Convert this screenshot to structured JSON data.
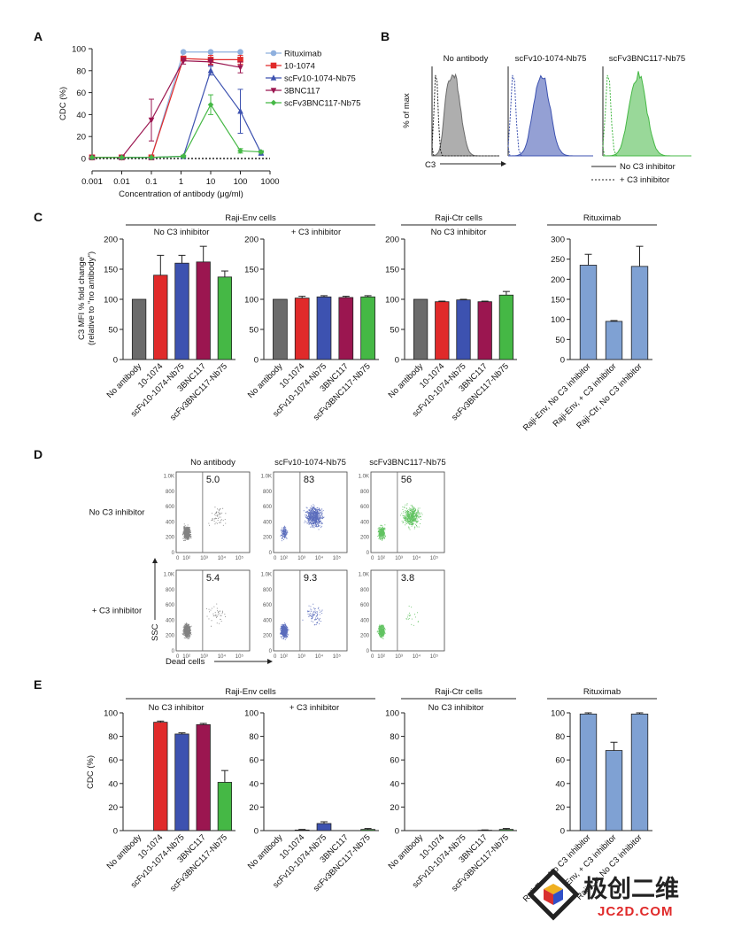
{
  "panels": {
    "A": "A",
    "B": "B",
    "C": "C",
    "D": "D",
    "E": "E"
  },
  "colors": {
    "rituximab": "#8fb0de",
    "ab1074": "#e02a2a",
    "scfv1074": "#3d52b0",
    "bnc117": "#9b1650",
    "scfv3bnc": "#45b845",
    "grey": "#6b6b6b",
    "green": "#45b845",
    "blue": "#3d52b0",
    "red": "#e02a2a",
    "magenta": "#9b1650",
    "lightblue": "#7fa1d3"
  },
  "chart_data": [
    {
      "id": "A",
      "type": "line",
      "xlabel": "Concentration of antibody (μg/ml)",
      "ylabel": "CDC (%)",
      "x": [
        0.001,
        0.01,
        0.1,
        1.2,
        10,
        100,
        500
      ],
      "xscale": "log",
      "xlim": [
        0.001,
        1000
      ],
      "ylim": [
        0,
        100
      ],
      "xticks": [
        "0.001",
        "0.01",
        "0.1",
        "1",
        "10",
        "100",
        "1000"
      ],
      "yticks": [
        "0",
        "20",
        "40",
        "60",
        "80",
        "100"
      ],
      "series": [
        {
          "name": "Rituximab",
          "marker": "circle",
          "values": [
            1,
            1,
            1,
            97,
            97,
            97,
            null
          ],
          "err": [
            0,
            0,
            0,
            1,
            1,
            1,
            0
          ]
        },
        {
          "name": "10-1074",
          "marker": "square",
          "values": [
            1,
            1,
            1,
            91,
            90,
            90,
            null
          ],
          "err": [
            0,
            0,
            0,
            2,
            4,
            4,
            0
          ]
        },
        {
          "name": "scFv10-1074-Nb75",
          "marker": "triangle-up",
          "values": [
            1,
            1,
            1,
            2,
            80,
            43,
            5
          ],
          "err": [
            0,
            0,
            0,
            1,
            4,
            20,
            2
          ]
        },
        {
          "name": "3BNC117",
          "marker": "triangle-down",
          "values": [
            1,
            1,
            35,
            89,
            88,
            83,
            null
          ],
          "err": [
            0,
            0,
            19,
            3,
            3,
            5,
            0
          ]
        },
        {
          "name": "scFv3BNC117-Nb75",
          "marker": "diamond",
          "values": [
            1,
            1,
            1,
            2,
            49,
            7,
            6
          ],
          "err": [
            0,
            0,
            0,
            1,
            9,
            2,
            1
          ]
        }
      ]
    },
    {
      "id": "B",
      "type": "area",
      "ylabel": "% of max",
      "xlabel": "C3",
      "subplots": [
        "No antibody",
        "scFv10-1074-Nb75",
        "scFv3BNC117-Nb75"
      ],
      "legend": [
        "No C3 inhibitor",
        "+ C3 inhibitor"
      ]
    },
    {
      "id": "C",
      "type": "bar",
      "ylabel": "C3 MFI % fold change (relative to \"no antibody\")",
      "groups": [
        {
          "header": "Raji-Env cells",
          "subtitle": "No C3 inhibitor",
          "ylim": [
            0,
            200
          ],
          "yticks": [
            "0",
            "50",
            "100",
            "150",
            "200"
          ],
          "categories": [
            "No antibody",
            "10-1074",
            "scFv10-1074-Nb75",
            "3BNC117",
            "scFv3BNC117-Nb75"
          ],
          "values": [
            100,
            140,
            160,
            162,
            137
          ],
          "err": [
            0,
            33,
            13,
            26,
            10
          ]
        },
        {
          "header": "",
          "subtitle": "+ C3 inhibitor",
          "ylim": [
            0,
            200
          ],
          "yticks": [
            "0",
            "50",
            "100",
            "150",
            "200"
          ],
          "categories": [
            "No antibody",
            "10-1074",
            "scFv10-1074-Nb75",
            "3BNC117",
            "scFv3BNC117-Nb75"
          ],
          "values": [
            100,
            102,
            104,
            103,
            104
          ],
          "err": [
            0,
            3,
            2,
            2,
            2
          ]
        },
        {
          "header": "Raji-Ctr cells",
          "subtitle": "No C3 inhibitor",
          "ylim": [
            0,
            200
          ],
          "yticks": [
            "0",
            "50",
            "100",
            "150",
            "200"
          ],
          "categories": [
            "No antibody",
            "10-1074",
            "scFv10-1074-Nb75",
            "3BNC117",
            "scFv3BNC117-Nb75"
          ],
          "values": [
            100,
            96,
            99,
            96,
            107
          ],
          "err": [
            0,
            1,
            1,
            1,
            6
          ]
        },
        {
          "header": "Rituximab",
          "subtitle": "",
          "ylim": [
            0,
            300
          ],
          "yticks": [
            "0",
            "50",
            "100",
            "150",
            "200",
            "250",
            "300"
          ],
          "categories": [
            "Raji-Env, No C3 inhibitor",
            "Raji-Env, + C3 inhibitor",
            "Raji-Ctr, No C3 inhibitor"
          ],
          "values": [
            235,
            95,
            232
          ],
          "err": [
            27,
            2,
            50
          ]
        }
      ]
    },
    {
      "id": "D",
      "type": "scatter",
      "xlabel": "Dead cells",
      "ylabel": "SSC",
      "columns": [
        "No antibody",
        "scFv10-1074-Nb75",
        "scFv3BNC117-Nb75"
      ],
      "rows": [
        "No C3 inhibitor",
        "+ C3 inhibitor"
      ],
      "percentages": [
        [
          "5.0",
          "83",
          "56"
        ],
        [
          "5.4",
          "9.3",
          "3.8"
        ]
      ],
      "yticks": [
        "0",
        "200",
        "400",
        "600",
        "800",
        "1.0K"
      ],
      "xticks": [
        "0",
        "10²",
        "10³",
        "10⁴",
        "10⁵"
      ]
    },
    {
      "id": "E",
      "type": "bar",
      "ylabel": "CDC (%)",
      "groups": [
        {
          "header": "Raji-Env cells",
          "subtitle": "No C3 inhibitor",
          "ylim": [
            0,
            100
          ],
          "yticks": [
            "0",
            "20",
            "40",
            "60",
            "80",
            "100"
          ],
          "categories": [
            "No antibody",
            "10-1074",
            "scFv10-1074-Nb75",
            "3BNC117",
            "scFv3BNC117-Nb75"
          ],
          "values": [
            0,
            92,
            82,
            90,
            41
          ],
          "err": [
            0,
            1,
            1,
            1,
            10
          ]
        },
        {
          "header": "",
          "subtitle": "+ C3 inhibitor",
          "ylim": [
            0,
            100
          ],
          "yticks": [
            "0",
            "20",
            "40",
            "60",
            "80",
            "100"
          ],
          "categories": [
            "No antibody",
            "10-1074",
            "scFv10-1074-Nb75",
            "3BNC117",
            "scFv3BNC117-Nb75"
          ],
          "values": [
            0,
            0.5,
            6,
            0,
            1
          ],
          "err": [
            0,
            0.5,
            1.5,
            0,
            0.8
          ]
        },
        {
          "header": "Raji-Ctr cells",
          "subtitle": "No C3 inhibitor",
          "ylim": [
            0,
            100
          ],
          "yticks": [
            "0",
            "20",
            "40",
            "60",
            "80",
            "100"
          ],
          "categories": [
            "No antibody",
            "10-1074",
            "scFv10-1074-Nb75",
            "3BNC117",
            "scFv3BNC117-Nb75"
          ],
          "values": [
            0,
            0,
            0,
            0.3,
            1
          ],
          "err": [
            0,
            0,
            0,
            0.3,
            0.8
          ]
        },
        {
          "header": "Rituximab",
          "subtitle": "",
          "ylim": [
            0,
            100
          ],
          "yticks": [
            "0",
            "20",
            "40",
            "60",
            "80",
            "100"
          ],
          "categories": [
            "Raji-Env, No C3 inhibitor",
            "Raji-Env, + C3 inhibitor",
            "Raji-Ctr, No C3 inhibitor"
          ],
          "values": [
            99,
            68,
            99
          ],
          "err": [
            1,
            7,
            1
          ]
        }
      ]
    }
  ],
  "watermark": {
    "title": "极创二维",
    "sub": "JC2D.COM"
  }
}
